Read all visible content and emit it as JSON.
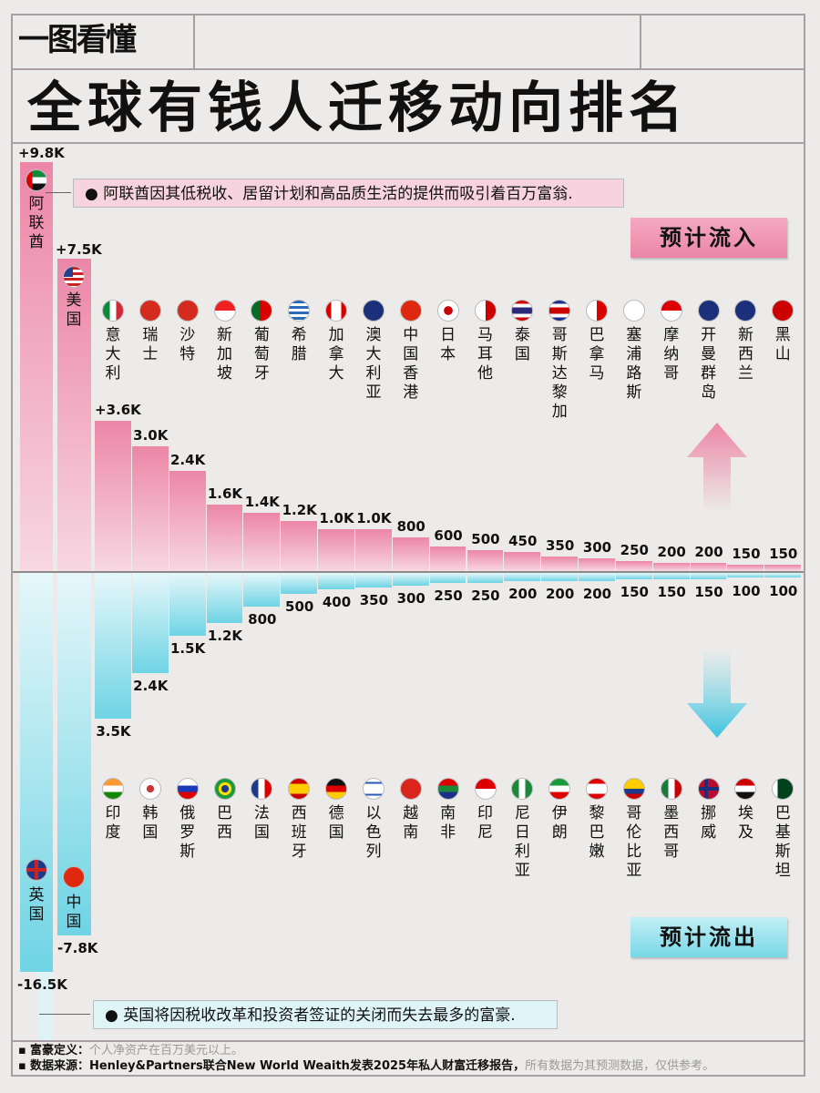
{
  "header": {
    "subtitle": "一图看懂",
    "title": "全球有钱人迁移动向排名"
  },
  "notes": {
    "inflow": "阿联酋因其低税收、居留计划和高品质生活的提供而吸引着百万富翁.",
    "outflow": "英国将因税收改革和投资者签证的关闭而失去最多的富豪."
  },
  "badges": {
    "inflow": "预计流入",
    "outflow": "预计流出"
  },
  "footer": {
    "def_label": "富豪定义：",
    "def_text": "个人净资产在百万美元以上。",
    "src_label": "数据来源：Henley&Partners联合New World Weaith发表2025年私人财富迁移报告，",
    "src_text": "所有数据为其预测数据，仅供参考。"
  },
  "colors": {
    "inflow": "#ec86a8",
    "outflow": "#6fd4e4",
    "frame": "#a99ea3"
  },
  "chart_data": {
    "type": "bar",
    "unit": "K",
    "big": {
      "inflow": [
        {
          "name": "阿联酋",
          "value": 9800,
          "label": "+9.8K",
          "flag": "ae"
        },
        {
          "name": "美国",
          "value": 7500,
          "label": "+7.5K",
          "flag": "us"
        }
      ],
      "outflow": [
        {
          "name": "英国",
          "value": -16500,
          "label": "-16.5K",
          "flag": "gb"
        },
        {
          "name": "中国",
          "value": -7800,
          "label": "-7.8K",
          "flag": "cn"
        }
      ]
    },
    "inflow": [
      {
        "name": "意大利",
        "value": 3600,
        "label": "+3.6K",
        "flag": "it"
      },
      {
        "name": "瑞士",
        "value": 3000,
        "label": "3.0K",
        "flag": "ch"
      },
      {
        "name": "沙特",
        "value": 2400,
        "label": "2.4K",
        "flag": "sa"
      },
      {
        "name": "新加坡",
        "value": 1600,
        "label": "1.6K",
        "flag": "sg"
      },
      {
        "name": "葡萄牙",
        "value": 1400,
        "label": "1.4K",
        "flag": "pt"
      },
      {
        "name": "希腊",
        "value": 1200,
        "label": "1.2K",
        "flag": "gr"
      },
      {
        "name": "加拿大",
        "value": 1000,
        "label": "1.0K",
        "flag": "ca"
      },
      {
        "name": "澳大利亚",
        "value": 1000,
        "label": "1.0K",
        "flag": "au"
      },
      {
        "name": "中国香港",
        "value": 800,
        "label": "800",
        "flag": "hk"
      },
      {
        "name": "日本",
        "value": 600,
        "label": "600",
        "flag": "jp"
      },
      {
        "name": "马耳他",
        "value": 500,
        "label": "500",
        "flag": "mt"
      },
      {
        "name": "泰国",
        "value": 450,
        "label": "450",
        "flag": "th"
      },
      {
        "name": "哥斯达黎加",
        "value": 350,
        "label": "350",
        "flag": "cr"
      },
      {
        "name": "巴拿马",
        "value": 300,
        "label": "300",
        "flag": "pa"
      },
      {
        "name": "塞浦路斯",
        "value": 250,
        "label": "250",
        "flag": "cy"
      },
      {
        "name": "摩纳哥",
        "value": 200,
        "label": "200",
        "flag": "mc"
      },
      {
        "name": "开曼群岛",
        "value": 200,
        "label": "200",
        "flag": "ky"
      },
      {
        "name": "新西兰",
        "value": 150,
        "label": "150",
        "flag": "nz"
      },
      {
        "name": "黑山",
        "value": 150,
        "label": "150",
        "flag": "me"
      }
    ],
    "outflow": [
      {
        "name": "印度",
        "value": -3500,
        "label": "3.5K",
        "flag": "in"
      },
      {
        "name": "韩国",
        "value": -2400,
        "label": "2.4K",
        "flag": "kr"
      },
      {
        "name": "俄罗斯",
        "value": -1500,
        "label": "1.5K",
        "flag": "ru"
      },
      {
        "name": "巴西",
        "value": -1200,
        "label": "1.2K",
        "flag": "br"
      },
      {
        "name": "法国",
        "value": -800,
        "label": "800",
        "flag": "fr"
      },
      {
        "name": "西班牙",
        "value": -500,
        "label": "500",
        "flag": "es"
      },
      {
        "name": "德国",
        "value": -400,
        "label": "400",
        "flag": "de"
      },
      {
        "name": "以色列",
        "value": -350,
        "label": "350",
        "flag": "il"
      },
      {
        "name": "越南",
        "value": -300,
        "label": "300",
        "flag": "vn"
      },
      {
        "name": "南非",
        "value": -250,
        "label": "250",
        "flag": "za"
      },
      {
        "name": "印尼",
        "value": -250,
        "label": "250",
        "flag": "id"
      },
      {
        "name": "尼日利亚",
        "value": -200,
        "label": "200",
        "flag": "ng"
      },
      {
        "name": "伊朗",
        "value": -200,
        "label": "200",
        "flag": "ir"
      },
      {
        "name": "黎巴嫩",
        "value": -200,
        "label": "200",
        "flag": "lb"
      },
      {
        "name": "哥伦比亚",
        "value": -150,
        "label": "150",
        "flag": "co"
      },
      {
        "name": "墨西哥",
        "value": -150,
        "label": "150",
        "flag": "mx"
      },
      {
        "name": "挪威",
        "value": -150,
        "label": "150",
        "flag": "no"
      },
      {
        "name": "埃及",
        "value": -100,
        "label": "100",
        "flag": "eg"
      },
      {
        "name": "巴基斯坦",
        "value": -100,
        "label": "100",
        "flag": "pk"
      }
    ]
  }
}
